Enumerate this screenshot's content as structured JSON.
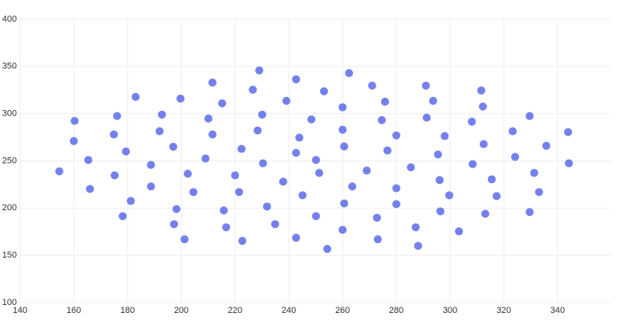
{
  "chart_data": {
    "type": "scatter",
    "color": "#7381ef",
    "x": [
      154.6,
      160.3,
      160,
      165.4,
      166,
      176.1,
      174.9,
      175.2,
      179.4,
      178.2,
      181.2,
      183,
      188.7,
      188.7,
      192.8,
      191.9,
      197,
      199.7,
      198.2,
      197.3,
      201.2,
      202.4,
      204.5,
      209,
      210.1,
      211.6,
      211.6,
      215.2,
      215.8,
      216.7,
      220,
      221.5,
      222.4,
      222.7,
      226.6,
      228.4,
      229,
      230.1,
      230.4,
      231.9,
      234.9,
      237.9,
      239.1,
      242.7,
      242.7,
      243.9,
      245.1,
      242.7,
      248.4,
      250.1,
      251.3,
      250.1,
      253.1,
      254.3,
      260,
      260,
      260.6,
      260.6,
      260,
      262.4,
      263.6,
      269,
      271,
      272.8,
      273.1,
      274.6,
      275.8,
      276.7,
      280,
      280,
      280,
      285.4,
      287.2,
      288.1,
      291,
      291.3,
      293.7,
      295.5,
      296.1,
      296.4,
      298,
      299.7,
      303.3,
      308.1,
      308.4,
      311.6,
      312.2,
      312.5,
      313.1,
      315.5,
      317.3,
      323.3,
      324.2,
      329.6,
      329.6,
      331.3,
      333.1,
      335.8,
      343.9,
      344.2
    ],
    "y": [
      239,
      292.4,
      271,
      251,
      220.3,
      297.5,
      278,
      234.7,
      260,
      191.5,
      207.6,
      317.8,
      245.8,
      222.9,
      299,
      281.4,
      265,
      316,
      199,
      183,
      167,
      236.4,
      217,
      252.5,
      294.9,
      333,
      278,
      311,
      197.5,
      179.7,
      234.7,
      217,
      262.7,
      165.3,
      325.4,
      282.2,
      345.8,
      299,
      247.5,
      201.7,
      183,
      228,
      313.6,
      336.4,
      258.5,
      274.6,
      213.6,
      168.6,
      294,
      251,
      237.3,
      191.5,
      323.7,
      156.8,
      306.8,
      283,
      265.3,
      205,
      177,
      343,
      222.9,
      239.8,
      329.7,
      189.8,
      167,
      293.2,
      312.7,
      261,
      277,
      221,
      204.2,
      243.2,
      179.7,
      160,
      329.7,
      295.8,
      313.6,
      256.8,
      229.7,
      196.6,
      276.3,
      213.6,
      175.4,
      291.5,
      246.6,
      324.6,
      307.6,
      267.8,
      194,
      230.5,
      212.7,
      281.4,
      254.2,
      297.5,
      195.8,
      237.3,
      217,
      266,
      280.5,
      247.5
    ],
    "xlim": [
      140,
      360
    ],
    "ylim": [
      100,
      400
    ],
    "xticks": [
      140,
      160,
      180,
      200,
      220,
      240,
      260,
      280,
      300,
      320,
      340
    ],
    "yticks": [
      100,
      150,
      200,
      250,
      300,
      350,
      400
    ],
    "grid": true
  }
}
